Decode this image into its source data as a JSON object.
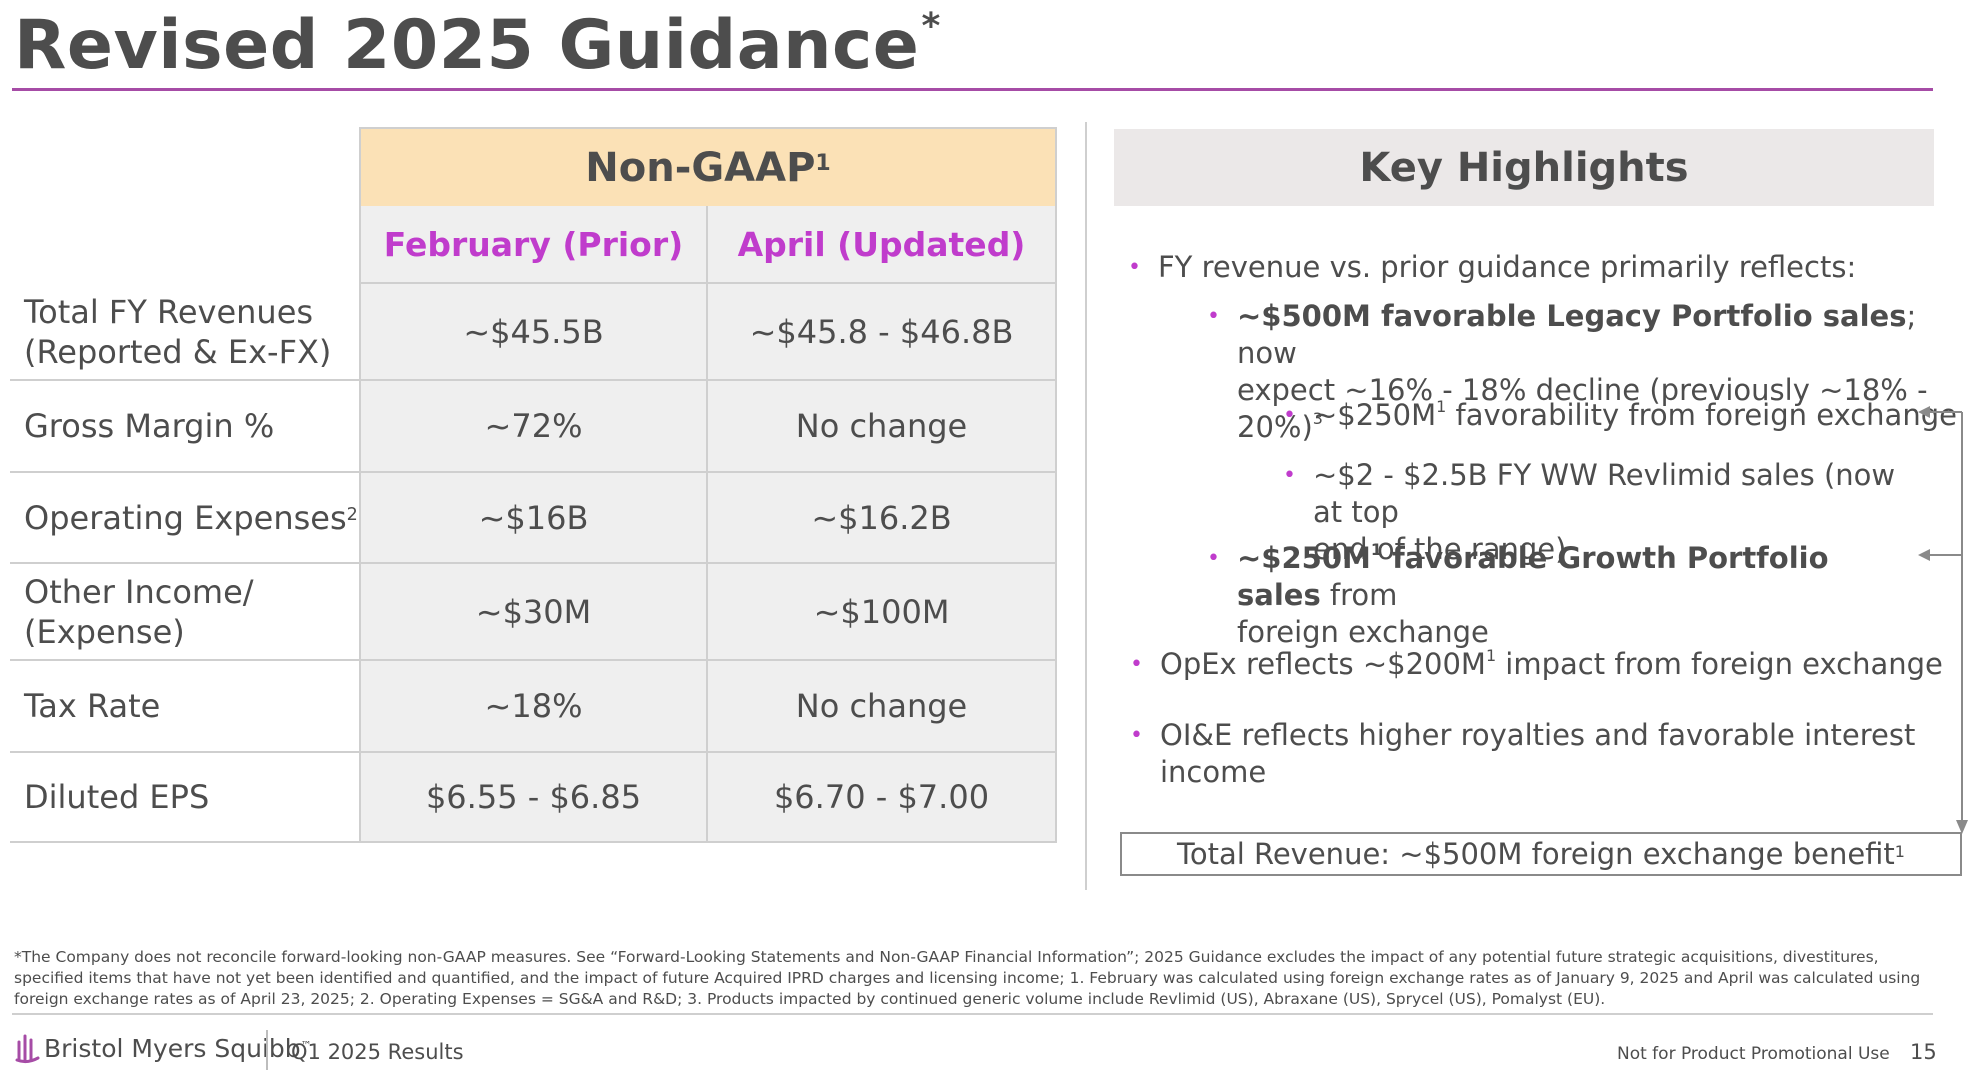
{
  "title": {
    "text": "Revised 2025 Guidance",
    "marker": "*"
  },
  "table": {
    "group_header": {
      "text": "Non-GAAP",
      "sup": "1"
    },
    "columns": [
      "February (Prior)",
      "April (Updated)"
    ],
    "rows": [
      {
        "label_line1": "Total FY Revenues",
        "label_line2": "(Reported & Ex-FX)",
        "prior": "~$45.5B",
        "updated": "~$45.8 - $46.8B"
      },
      {
        "label_line1": "Gross Margin %",
        "label_line2": "",
        "prior": "~72%",
        "updated": "No change"
      },
      {
        "label_line1": "Operating Expenses",
        "label_sup": "2",
        "label_line2": "",
        "prior": "~$16B",
        "updated": "~$16.2B"
      },
      {
        "label_line1": "Other Income/",
        "label_line2": "(Expense)",
        "prior": "~$30M",
        "updated": "~$100M"
      },
      {
        "label_line1": "Tax Rate",
        "label_line2": "",
        "prior": "~18%",
        "updated": "No change"
      },
      {
        "label_line1": "Diluted EPS",
        "label_line2": "",
        "prior": "$6.55 - $6.85",
        "updated": "$6.70 - $7.00"
      }
    ]
  },
  "highlights": {
    "header": "Key Highlights",
    "b1": "FY revenue vs. prior guidance primarily reflects:",
    "b1a_bold": "~$500M favorable Legacy Portfolio sales",
    "b1a_rest_line1": "; now",
    "b1a_line2": "expect ~16% - 18% decline (previously ~18% - 20%)",
    "b1a_sup": "3",
    "b1a_i_pre": "~$250M",
    "b1a_i_sup": "1",
    "b1a_i_post": " favorability from foreign exchange",
    "b1a_ii_line1": "~$2 - $2.5B FY WW Revlimid sales (now at top",
    "b1a_ii_line2": "end of the range)",
    "b1b_bold_pre": "~$250M",
    "b1b_sup": "1",
    "b1b_bold_post": " favorable Growth Portfolio sales",
    "b1b_rest": " from",
    "b1b_line2": "foreign exchange",
    "b2_pre": "OpEx reflects ~$200M",
    "b2_sup": "1",
    "b2_post": " impact from foreign exchange",
    "b3_line1": "OI&E reflects higher royalties and favorable interest",
    "b3_line2": "income",
    "total_box": "Total Revenue: ~$500M foreign exchange benefit",
    "total_box_sup": "1",
    "arrow_color": "#8a8a8a",
    "bullet_color": "#c03ccc"
  },
  "footnote": {
    "line1": "*The Company does not reconcile forward-looking non-GAAP measures. See “Forward-Looking Statements and Non-GAAP Financial Information”; 2025 Guidance excludes the impact of any potential future strategic acquisitions, divestitures,",
    "line2": "specified items that have not yet been identified and quantified, and the impact of future Acquired IPRD charges and licensing income; 1. February was calculated using foreign exchange rates as of January 9, 2025 and April was calculated using",
    "line3": "foreign exchange rates as of April 23, 2025; 2. Operating Expenses = SG&A and R&D; 3. Products impacted by continued generic volume include Revlimid (US), Abraxane (US), Sprycel (US), Pomalyst (EU)."
  },
  "footer": {
    "logo_text": "Bristol Myers Squibb",
    "logo_tm": "™",
    "left_text": "Q1 2025 Results",
    "right_text": "Not for Product Promotional Use",
    "page_number": "15"
  },
  "colors": {
    "accent": "#a64ca6",
    "column_header": "#c03ccc",
    "group_header_bg": "#fbe1b6",
    "cell_bg": "#efefef"
  }
}
